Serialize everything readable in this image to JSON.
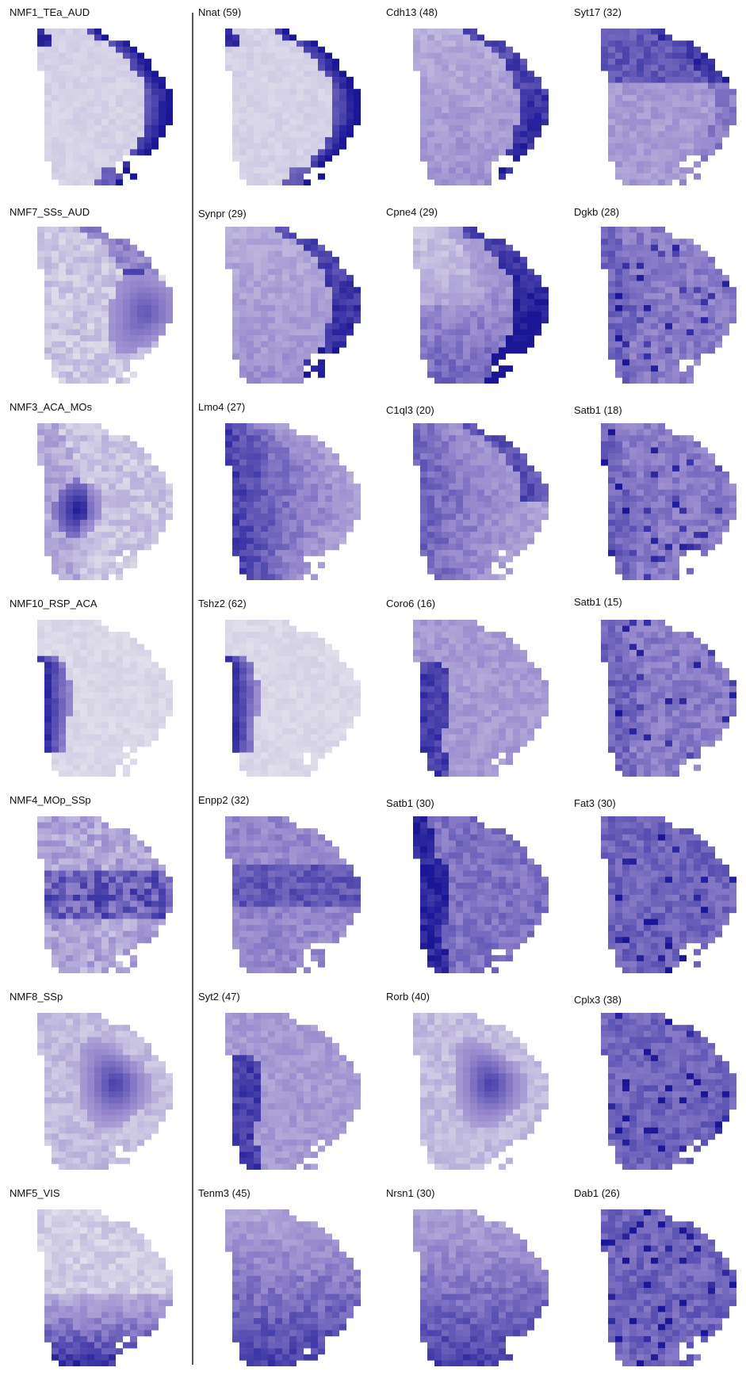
{
  "figure": {
    "rows": [
      {
        "panels": [
          {
            "label": "NMF1_TEa_AUD",
            "pattern": "edge_rt"
          },
          {
            "label": "Nnat (59)",
            "pattern": "edge_rt"
          },
          {
            "label": "Cdh13 (48)",
            "pattern": "edge_rt_soft"
          },
          {
            "label": "Syt17 (32)",
            "pattern": "top_band"
          }
        ]
      },
      {
        "panels": [
          {
            "label": "NMF7_SSs_AUD",
            "pattern": "rt_blob"
          },
          {
            "label": "Synpr (29)",
            "pattern": "edge_rt_soft"
          },
          {
            "label": "Cpne4 (29)",
            "pattern": "rt_mid"
          },
          {
            "label": "Dgkb (28)",
            "pattern": "broad"
          }
        ]
      },
      {
        "panels": [
          {
            "label": "NMF3_ACA_MOs",
            "pattern": "left_spot"
          },
          {
            "label": "Lmo4 (27)",
            "pattern": "left_broad"
          },
          {
            "label": "C1ql3 (20)",
            "pattern": "left_broad_rt"
          },
          {
            "label": "Satb1 (18)",
            "pattern": "broad"
          }
        ]
      },
      {
        "panels": [
          {
            "label": "NMF10_RSP_ACA",
            "pattern": "left_edge"
          },
          {
            "label": "Tshz2 (62)",
            "pattern": "left_edge"
          },
          {
            "label": "Coro6 (16)",
            "pattern": "left_edge_soft"
          },
          {
            "label": "Satb1 (15)",
            "pattern": "broad"
          }
        ]
      },
      {
        "panels": [
          {
            "label": "NMF4_MOp_SSp",
            "pattern": "mid_band"
          },
          {
            "label": "Enpp2 (32)",
            "pattern": "mid_band_broad"
          },
          {
            "label": "Satb1 (30)",
            "pattern": "broad_left"
          },
          {
            "label": "Fat3 (30)",
            "pattern": "broad_dark"
          }
        ]
      },
      {
        "panels": [
          {
            "label": "NMF8_SSp",
            "pattern": "center_blob"
          },
          {
            "label": "Syt2 (47)",
            "pattern": "left_edge_soft"
          },
          {
            "label": "Rorb (40)",
            "pattern": "center_blob"
          },
          {
            "label": "Cplx3 (38)",
            "pattern": "broad_dark"
          }
        ]
      },
      {
        "panels": [
          {
            "label": "NMF5_VIS",
            "pattern": "bottom"
          },
          {
            "label": "Tenm3 (45)",
            "pattern": "bottom_broad"
          },
          {
            "label": "Nrsn1 (30)",
            "pattern": "bottom_broad"
          },
          {
            "label": "Dab1 (26)",
            "pattern": "broad_dark"
          }
        ]
      }
    ]
  },
  "colors": {
    "background": "#ffffff",
    "low": "#e8e8ee",
    "high": "#1a1696",
    "divider": "#555555",
    "text": "#111111"
  }
}
